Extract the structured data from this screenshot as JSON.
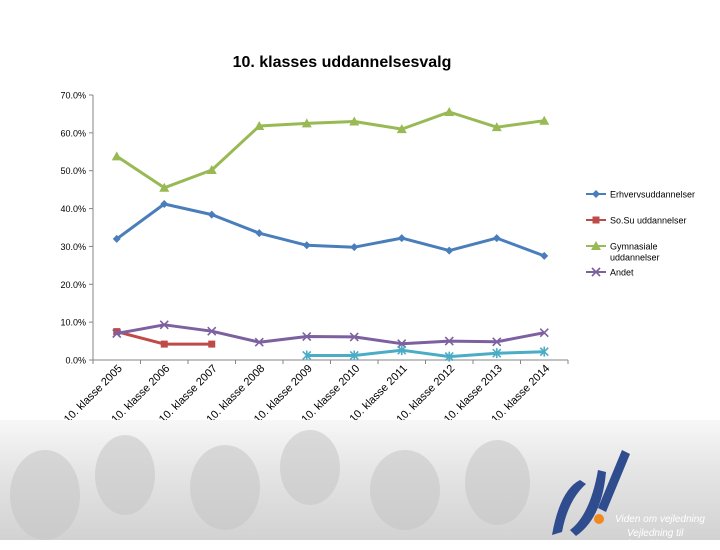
{
  "chart_data": {
    "type": "line",
    "title": "10. klasses uddannelsesvalg",
    "xlabel": "",
    "ylabel": "",
    "categories": [
      "10. klasse 2005",
      "10. klasse 2006",
      "10. klasse 2007",
      "10. klasse 2008",
      "10. klasse 2009",
      "10. klasse 2010",
      "10. klasse 2011",
      "10. klasse 2012",
      "10. klasse 2013",
      "10. klasse 2014"
    ],
    "ylim": [
      0,
      70
    ],
    "yticks": [
      "0.0%",
      "10.0%",
      "20.0%",
      "30.0%",
      "40.0%",
      "50.0%",
      "60.0%",
      "70.0%"
    ],
    "grid": false,
    "legend_position": "right",
    "series": [
      {
        "name": "Erhvervsuddannelser",
        "color": "#4a7ebb",
        "marker": "diamond",
        "values": [
          32.0,
          41.2,
          38.4,
          33.5,
          30.3,
          29.8,
          32.2,
          28.9,
          32.2,
          27.5
        ]
      },
      {
        "name": "So.Su uddannelser",
        "color": "#be4b48",
        "marker": "square",
        "values": [
          7.5,
          4.2,
          4.2,
          null,
          null,
          null,
          null,
          null,
          null,
          null
        ]
      },
      {
        "name": "Gymnasiale uddannelser",
        "color": "#98b954",
        "marker": "triangle",
        "values": [
          53.8,
          45.5,
          50.2,
          61.8,
          62.5,
          63.0,
          61.0,
          65.5,
          61.5,
          63.2
        ]
      },
      {
        "name": "Andet",
        "color": "#7d60a0",
        "marker": "x",
        "values": [
          7.0,
          9.3,
          7.6,
          4.7,
          6.2,
          6.1,
          4.3,
          5.0,
          4.8,
          7.2
        ]
      },
      {
        "name": "",
        "color": "#4bacc6",
        "marker": "star",
        "values": [
          null,
          null,
          null,
          null,
          1.2,
          1.2,
          2.6,
          0.9,
          1.8,
          2.2
        ]
      }
    ]
  },
  "footer": {
    "logo_text": "JUV",
    "tagline_1": "Viden om vejledning",
    "tagline_2": "Vejledning til fremtiden!"
  }
}
